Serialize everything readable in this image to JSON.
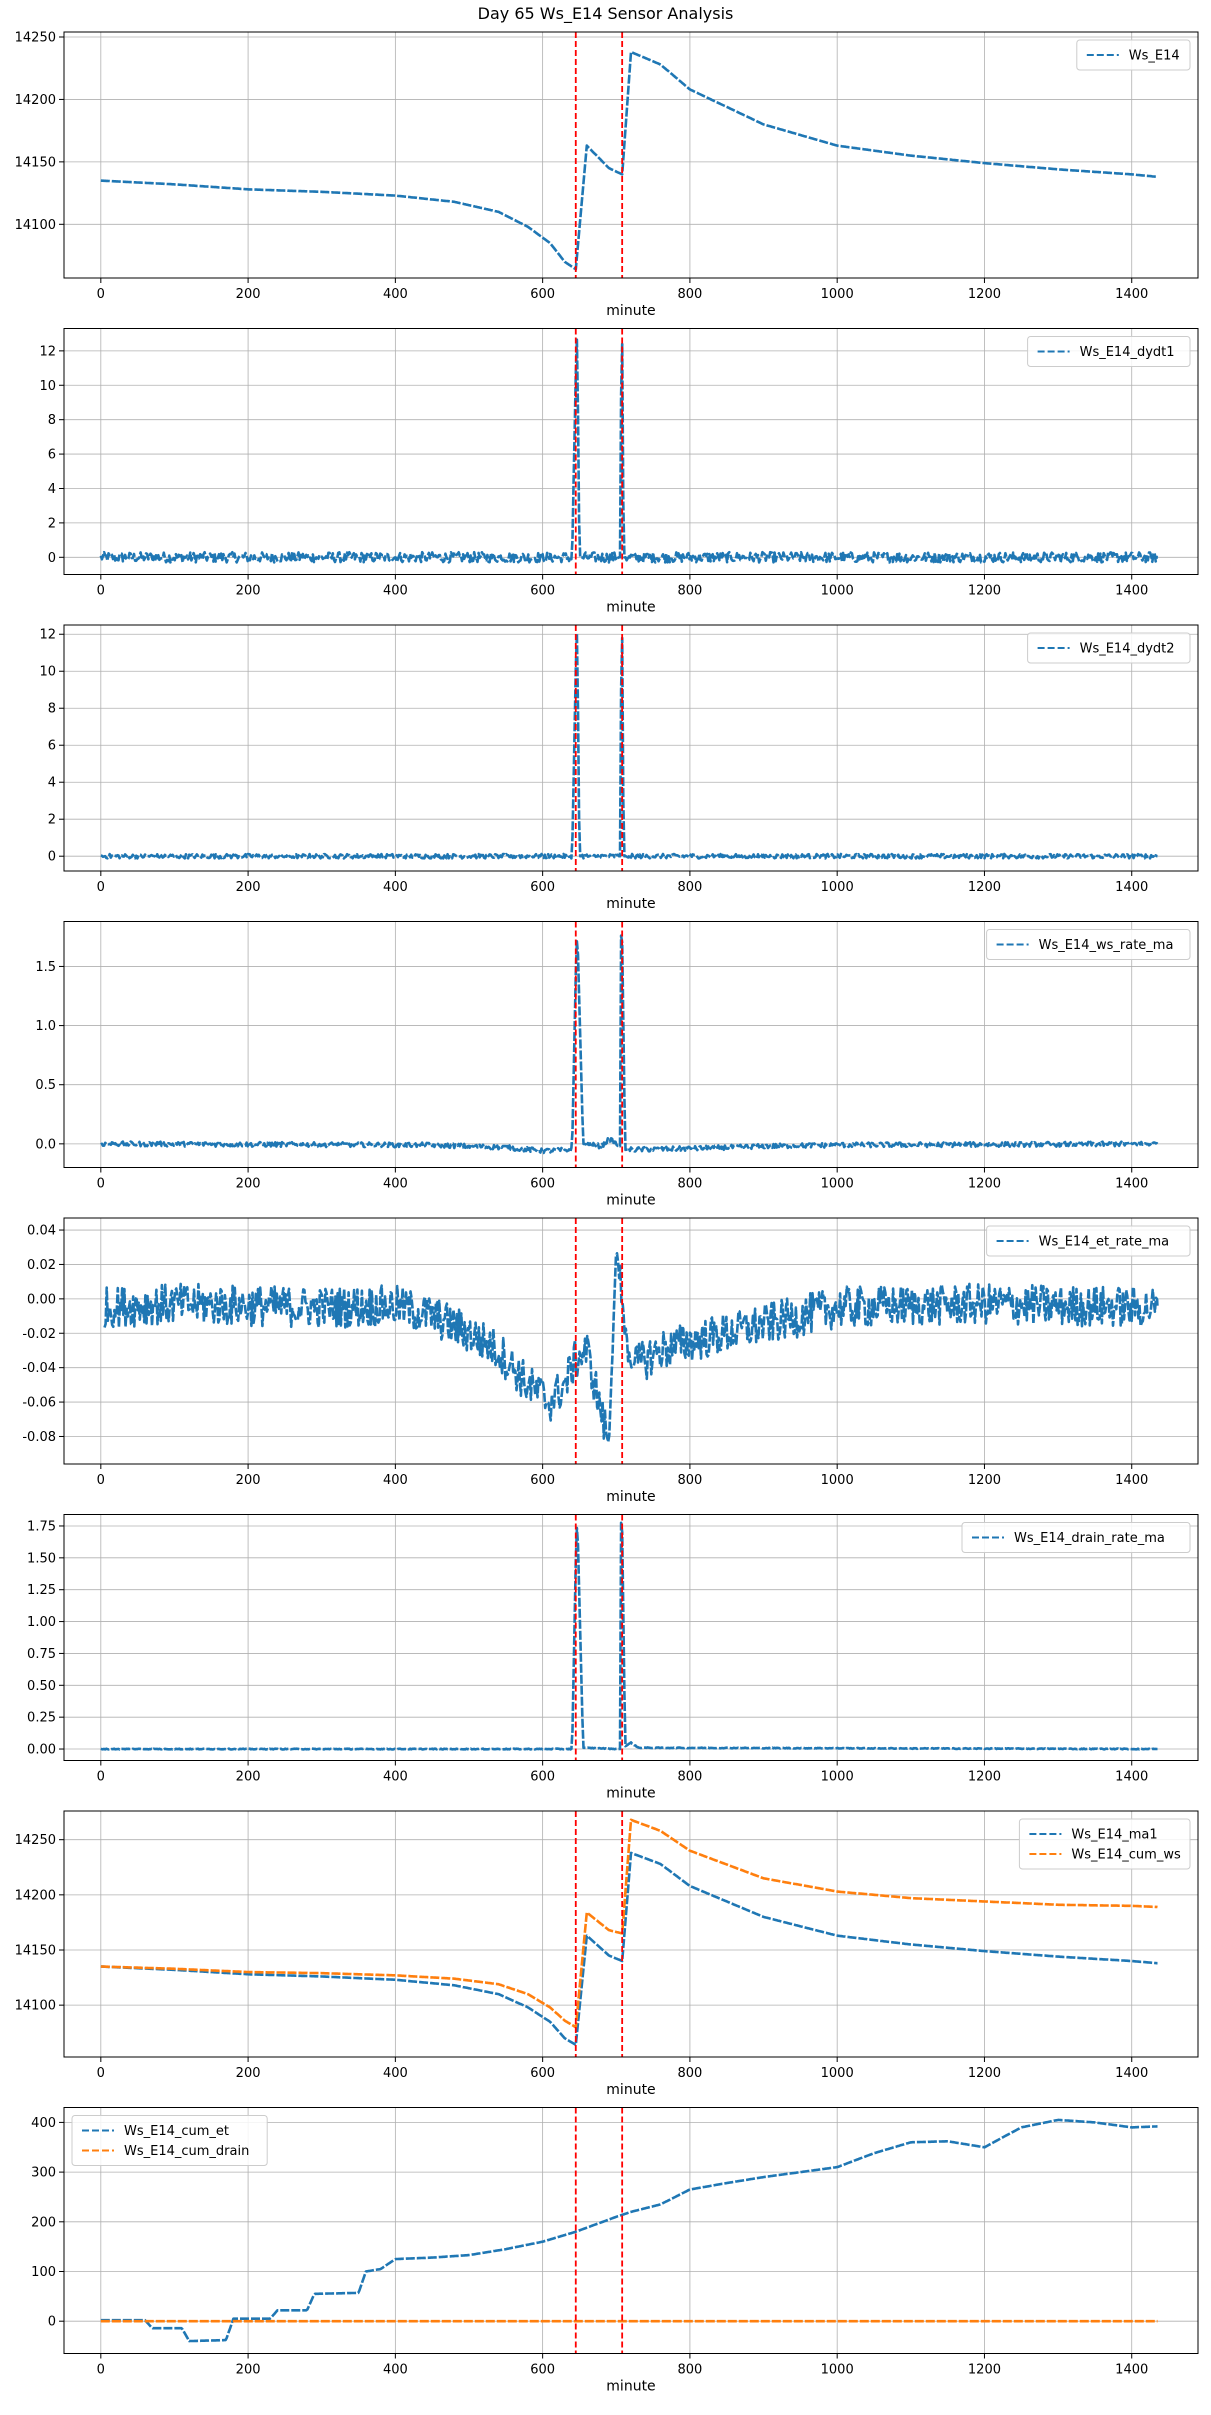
{
  "figure": {
    "title": "Day 65 Ws_E14 Sensor Analysis"
  },
  "colors": {
    "blue": "#1f77b4",
    "orange": "#ff7f0e",
    "vline": "#ff0000",
    "grid": "#b0b0b0"
  },
  "chart_data": [
    {
      "type": "line",
      "xlabel": "minute",
      "xlim": [
        -50,
        1490
      ],
      "ylim": [
        14057,
        14254
      ],
      "xticks": [
        0,
        200,
        400,
        600,
        800,
        1000,
        1200,
        1400
      ],
      "yticks": [
        14100,
        14150,
        14200,
        14250
      ],
      "ytick_labels": [
        "14100",
        "14150",
        "14200",
        "14250"
      ],
      "vlines": [
        645,
        708
      ],
      "legend_loc": "upper right",
      "grid": true,
      "series": [
        {
          "name": "Ws_E14",
          "color": "#1f77b4",
          "style": "dashed",
          "x": [
            0,
            100,
            200,
            300,
            400,
            480,
            540,
            580,
            610,
            630,
            645,
            660,
            690,
            708,
            720,
            760,
            800,
            900,
            1000,
            1100,
            1200,
            1300,
            1400,
            1435
          ],
          "y": [
            14135,
            14132,
            14128,
            14126,
            14123,
            14118,
            14110,
            14098,
            14085,
            14070,
            14064,
            14163,
            14145,
            14140,
            14238,
            14228,
            14208,
            14180,
            14163,
            14155,
            14149,
            14144,
            14140,
            14138
          ]
        }
      ]
    },
    {
      "type": "line",
      "xlabel": "minute",
      "xlim": [
        -50,
        1490
      ],
      "ylim": [
        -1.0,
        13.3
      ],
      "xticks": [
        0,
        200,
        400,
        600,
        800,
        1000,
        1200,
        1400
      ],
      "yticks": [
        0,
        2,
        4,
        6,
        8,
        10,
        12
      ],
      "ytick_labels": [
        "0",
        "2",
        "4",
        "6",
        "8",
        "10",
        "12"
      ],
      "vlines": [
        645,
        708
      ],
      "legend_loc": "upper right",
      "grid": true,
      "noise_amp": 0.3,
      "series": [
        {
          "name": "Ws_E14_dydt1",
          "color": "#1f77b4",
          "style": "dashed",
          "x": [
            0,
            640,
            646,
            647,
            650,
            705,
            707,
            708,
            710,
            1435
          ],
          "y": [
            0,
            0,
            12.8,
            12.5,
            0,
            0,
            12.6,
            12.4,
            0,
            0
          ]
        }
      ]
    },
    {
      "type": "line",
      "xlabel": "minute",
      "xlim": [
        -50,
        1490
      ],
      "ylim": [
        -0.8,
        12.5
      ],
      "xticks": [
        0,
        200,
        400,
        600,
        800,
        1000,
        1200,
        1400
      ],
      "yticks": [
        0,
        2,
        4,
        6,
        8,
        10,
        12
      ],
      "ytick_labels": [
        "0",
        "2",
        "4",
        "6",
        "8",
        "10",
        "12"
      ],
      "vlines": [
        645,
        708
      ],
      "legend_loc": "upper right",
      "grid": true,
      "noise_amp": 0.12,
      "series": [
        {
          "name": "Ws_E14_dydt2",
          "color": "#1f77b4",
          "style": "dashed",
          "x": [
            0,
            640,
            646,
            647,
            650,
            705,
            707,
            708,
            710,
            1435
          ],
          "y": [
            0,
            0,
            12.2,
            11.9,
            0,
            0,
            12.0,
            11.8,
            0,
            0
          ]
        }
      ]
    },
    {
      "type": "line",
      "xlabel": "minute",
      "xlim": [
        -50,
        1490
      ],
      "ylim": [
        -0.2,
        1.88
      ],
      "xticks": [
        0,
        200,
        400,
        600,
        800,
        1000,
        1200,
        1400
      ],
      "yticks": [
        0.0,
        0.5,
        1.0,
        1.5
      ],
      "ytick_labels": [
        "0.0",
        "0.5",
        "1.0",
        "1.5"
      ],
      "vlines": [
        645,
        708
      ],
      "legend_loc": "upper right",
      "grid": true,
      "noise_amp": 0.02,
      "series": [
        {
          "name": "Ws_E14_ws_rate_ma",
          "color": "#1f77b4",
          "style": "dashed",
          "x": [
            0,
            450,
            550,
            600,
            640,
            646,
            648,
            655,
            680,
            690,
            705,
            706,
            708,
            712,
            800,
            900,
            1000,
            1435
          ],
          "y": [
            0,
            -0.01,
            -0.03,
            -0.06,
            -0.05,
            1.75,
            1.6,
            0.0,
            -0.02,
            0.04,
            -0.02,
            1.78,
            1.7,
            -0.05,
            -0.04,
            -0.02,
            -0.01,
            0
          ]
        }
      ]
    },
    {
      "type": "line",
      "xlabel": "minute",
      "xlim": [
        -50,
        1490
      ],
      "ylim": [
        -0.096,
        0.047
      ],
      "xticks": [
        0,
        200,
        400,
        600,
        800,
        1000,
        1200,
        1400
      ],
      "yticks": [
        -0.08,
        -0.06,
        -0.04,
        -0.02,
        0.0,
        0.02,
        0.04
      ],
      "ytick_labels": [
        "-0.08",
        "-0.06",
        "-0.04",
        "-0.02",
        "0.00",
        "0.02",
        "0.04"
      ],
      "vlines": [
        645,
        708
      ],
      "legend_loc": "upper right",
      "grid": true,
      "noise_amp": 0.012,
      "series": [
        {
          "name": "Ws_E14_et_rate_ma",
          "color": "#1f77b4",
          "style": "dashed",
          "x": [
            5,
            100,
            200,
            300,
            400,
            450,
            500,
            540,
            580,
            610,
            630,
            645,
            660,
            690,
            700,
            720,
            760,
            800,
            850,
            900,
            1000,
            1100,
            1200,
            1300,
            1435
          ],
          "y": [
            -0.005,
            -0.003,
            -0.004,
            -0.005,
            -0.004,
            -0.01,
            -0.02,
            -0.03,
            -0.05,
            -0.06,
            -0.05,
            -0.035,
            -0.03,
            -0.085,
            0.03,
            -0.04,
            -0.03,
            -0.025,
            -0.02,
            -0.015,
            -0.005,
            -0.004,
            -0.003,
            -0.004,
            -0.005
          ]
        }
      ]
    },
    {
      "type": "line",
      "xlabel": "minute",
      "xlim": [
        -50,
        1490
      ],
      "ylim": [
        -0.09,
        1.84
      ],
      "xticks": [
        0,
        200,
        400,
        600,
        800,
        1000,
        1200,
        1400
      ],
      "yticks": [
        0.0,
        0.25,
        0.5,
        0.75,
        1.0,
        1.25,
        1.5,
        1.75
      ],
      "ytick_labels": [
        "0.00",
        "0.25",
        "0.50",
        "0.75",
        "1.00",
        "1.25",
        "1.50",
        "1.75"
      ],
      "vlines": [
        645,
        708
      ],
      "legend_loc": "upper right",
      "grid": true,
      "noise_amp": 0.003,
      "series": [
        {
          "name": "Ws_E14_drain_rate_ma",
          "color": "#1f77b4",
          "style": "dashed",
          "x": [
            0,
            640,
            646,
            648,
            655,
            705,
            706,
            708,
            712,
            720,
            730,
            1435
          ],
          "y": [
            0,
            0,
            1.78,
            1.6,
            0.01,
            0.0,
            1.8,
            1.7,
            0.02,
            0.05,
            0.01,
            0
          ]
        }
      ]
    },
    {
      "type": "line",
      "xlabel": "minute",
      "xlim": [
        -50,
        1490
      ],
      "ylim": [
        14053,
        14276
      ],
      "xticks": [
        0,
        200,
        400,
        600,
        800,
        1000,
        1200,
        1400
      ],
      "yticks": [
        14100,
        14150,
        14200,
        14250
      ],
      "ytick_labels": [
        "14100",
        "14150",
        "14200",
        "14250"
      ],
      "vlines": [
        645,
        708
      ],
      "legend_loc": "upper right",
      "grid": true,
      "series": [
        {
          "name": "Ws_E14_ma1",
          "color": "#1f77b4",
          "style": "dashed",
          "x": [
            0,
            100,
            200,
            300,
            400,
            480,
            540,
            580,
            610,
            630,
            645,
            660,
            690,
            708,
            720,
            760,
            800,
            900,
            1000,
            1100,
            1200,
            1300,
            1400,
            1435
          ],
          "y": [
            14135,
            14132,
            14128,
            14126,
            14123,
            14118,
            14110,
            14098,
            14085,
            14070,
            14064,
            14163,
            14145,
            14140,
            14238,
            14228,
            14208,
            14180,
            14163,
            14155,
            14149,
            14144,
            14140,
            14138
          ]
        },
        {
          "name": "Ws_E14_cum_ws",
          "color": "#ff7f0e",
          "style": "dashed",
          "x": [
            0,
            100,
            200,
            300,
            400,
            480,
            540,
            580,
            610,
            630,
            645,
            660,
            690,
            708,
            720,
            760,
            800,
            900,
            1000,
            1100,
            1200,
            1300,
            1400,
            1435
          ],
          "y": [
            14135,
            14133,
            14130,
            14129,
            14127,
            14124,
            14119,
            14110,
            14098,
            14086,
            14080,
            14184,
            14168,
            14165,
            14268,
            14258,
            14240,
            14215,
            14203,
            14197,
            14194,
            14191,
            14190,
            14189
          ]
        }
      ]
    },
    {
      "type": "line",
      "xlabel": "minute",
      "xlim": [
        -50,
        1490
      ],
      "ylim": [
        -65,
        430
      ],
      "xticks": [
        0,
        200,
        400,
        600,
        800,
        1000,
        1200,
        1400
      ],
      "yticks": [
        0,
        100,
        200,
        300,
        400
      ],
      "ytick_labels": [
        "0",
        "100",
        "200",
        "300",
        "400"
      ],
      "vlines": [
        645,
        708
      ],
      "legend_loc": "upper left",
      "grid": true,
      "series": [
        {
          "name": "Ws_E14_cum_et",
          "color": "#1f77b4",
          "style": "dashed",
          "x": [
            0,
            60,
            70,
            110,
            120,
            170,
            180,
            230,
            240,
            280,
            290,
            350,
            360,
            380,
            400,
            450,
            500,
            550,
            600,
            645,
            700,
            720,
            760,
            800,
            850,
            900,
            950,
            1000,
            1050,
            1100,
            1150,
            1200,
            1250,
            1300,
            1350,
            1400,
            1435
          ],
          "y": [
            2,
            2,
            -14,
            -14,
            -40,
            -38,
            5,
            5,
            22,
            22,
            55,
            57,
            100,
            105,
            125,
            128,
            133,
            145,
            160,
            180,
            210,
            220,
            235,
            265,
            278,
            290,
            300,
            310,
            338,
            360,
            362,
            350,
            390,
            405,
            400,
            390,
            392
          ]
        },
        {
          "name": "Ws_E14_cum_drain",
          "color": "#ff7f0e",
          "style": "dashed",
          "x": [
            0,
            1435
          ],
          "y": [
            0,
            0
          ]
        }
      ]
    }
  ]
}
